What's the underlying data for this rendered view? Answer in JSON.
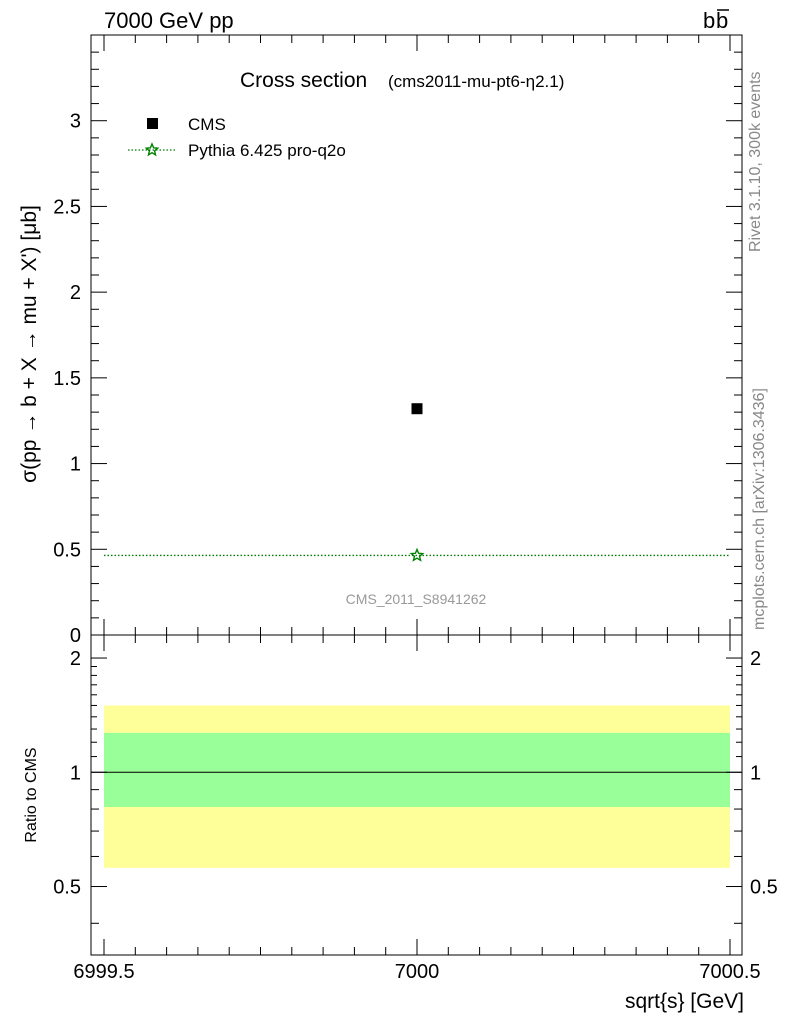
{
  "header": {
    "left": "7000 GeV pp",
    "right": "b̅b",
    "right_base": "b",
    "right_bar": "b"
  },
  "side_labels": {
    "rivet": "Rivet 3.1.10,  300k events",
    "mcplots": "mcplots.cern.ch [arXiv:1306.3436]"
  },
  "chart_data": [
    {
      "type": "scatter",
      "title": "Cross section",
      "subtitle": "(cms2011-mu-pt6-η2.1)",
      "watermark": "CMS_2011_S8941262",
      "xlabel": "",
      "ylabel": "σ(pp → b + X → mu + X') [μb]",
      "xlim": [
        6999.5,
        7000.5
      ],
      "ylim": [
        0,
        3.5
      ],
      "y_ticks": [
        0,
        0.5,
        1,
        1.5,
        2,
        2.5,
        3
      ],
      "y_tick_labels": [
        "0",
        "0.5",
        "1",
        "1.5",
        "2",
        "2.5",
        "3"
      ],
      "legend_position": "top-left",
      "grid": false,
      "series": [
        {
          "name": "CMS",
          "marker": "square",
          "color": "#000000",
          "x": [
            7000
          ],
          "y": [
            1.32
          ]
        },
        {
          "name": "Pythia 6.425 pro-q2o",
          "marker": "star",
          "line": "dotted",
          "color": "#008000",
          "x": [
            6999.5,
            7000,
            7000.5
          ],
          "y": [
            0.464,
            0.464,
            0.464
          ]
        }
      ]
    },
    {
      "type": "area",
      "title": "",
      "xlabel": "sqrt{s} [GeV]",
      "ylabel": "Ratio to CMS",
      "xlim": [
        6999.5,
        7000.5
      ],
      "ylim": [
        0.33,
        2.3
      ],
      "x_ticks": [
        6999.5,
        7000,
        7000.5
      ],
      "x_tick_labels": [
        "6999.5",
        "7000",
        "7000.5"
      ],
      "y_ticks": [
        0.5,
        1,
        2
      ],
      "y_tick_labels": [
        "0.5",
        "1",
        "2"
      ],
      "grid": false,
      "bands": [
        {
          "name": "outer",
          "color": "#ffff99",
          "low": 0.56,
          "high": 1.5
        },
        {
          "name": "inner",
          "color": "#99ff99",
          "low": 0.81,
          "high": 1.27
        }
      ],
      "reference_line": 1.0
    }
  ]
}
